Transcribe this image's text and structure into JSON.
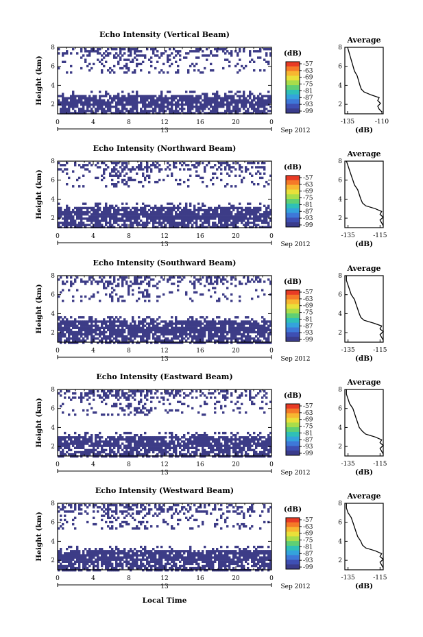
{
  "figure": {
    "xlabel": "Local Time"
  },
  "colorbar": {
    "unit": "(dB)",
    "ticks": [
      "-57",
      "-63",
      "-69",
      "-75",
      "-81",
      "-87",
      "-93",
      "-99"
    ],
    "colors": [
      "#e83b25",
      "#f57a28",
      "#f7b731",
      "#e9e03a",
      "#a9dd4a",
      "#5fcf74",
      "#2fc0b7",
      "#34a3dc",
      "#3e78d8",
      "#3e4fb3",
      "#3a3c8c"
    ]
  },
  "chart_data": [
    {
      "type": "heatmap",
      "title": "Echo Intensity (Vertical Beam)",
      "ylabel": "Height (km)",
      "xticks": [
        "0",
        "4",
        "8",
        "12",
        "16",
        "20",
        "0"
      ],
      "date_tick": "13",
      "date_label": "Sep 2012",
      "yticks": [
        "2",
        "4",
        "6",
        "8"
      ],
      "xlim": [
        0,
        24
      ],
      "ylim": [
        1,
        8
      ],
      "low_layer_top_km": 3.0,
      "average": {
        "title": "Average",
        "xlabel": "(dB)",
        "xticks": [
          "-135",
          "-110"
        ],
        "xlim": [
          -137,
          -109
        ],
        "yticks": [
          "2",
          "4",
          "6",
          "8"
        ],
        "ylim": [
          1,
          8
        ],
        "height_km": [
          1.2,
          1.5,
          1.8,
          2.1,
          2.4,
          2.7,
          3.0,
          3.3,
          3.6,
          4.0,
          4.5,
          5.0,
          5.5,
          6.0,
          6.5,
          7.0,
          7.5,
          8.0
        ],
        "db": [
          -110,
          -112,
          -113,
          -111,
          -113,
          -112,
          -118,
          -123,
          -125,
          -126,
          -127,
          -128,
          -130,
          -131,
          -132,
          -133,
          -134,
          -135
        ]
      }
    },
    {
      "type": "heatmap",
      "title": "Echo Intensity (Northward Beam)",
      "ylabel": "Height (km)",
      "xticks": [
        "0",
        "4",
        "8",
        "12",
        "16",
        "20",
        "0"
      ],
      "date_tick": "13",
      "date_label": "Sep 2012",
      "yticks": [
        "2",
        "4",
        "6",
        "8"
      ],
      "xlim": [
        0,
        24
      ],
      "ylim": [
        1,
        8
      ],
      "low_layer_top_km": 3.2,
      "average": {
        "title": "Average",
        "xlabel": "(dB)",
        "xticks": [
          "-135",
          "-115"
        ],
        "xlim": [
          -137,
          -113
        ],
        "yticks": [
          "2",
          "4",
          "6",
          "8"
        ],
        "ylim": [
          1,
          8
        ],
        "height_km": [
          1.2,
          1.5,
          1.8,
          2.1,
          2.4,
          2.7,
          3.0,
          3.3,
          3.6,
          4.0,
          4.5,
          5.0,
          5.5,
          6.0,
          6.5,
          7.0,
          7.5,
          8.0
        ],
        "db": [
          -113,
          -114,
          -115,
          -113,
          -115,
          -114,
          -118,
          -124,
          -126,
          -127,
          -128,
          -129,
          -131,
          -132,
          -133,
          -134,
          -135,
          -136
        ]
      }
    },
    {
      "type": "heatmap",
      "title": "Echo Intensity (Southward Beam)",
      "ylabel": "Height (km)",
      "xticks": [
        "0",
        "4",
        "8",
        "12",
        "16",
        "20",
        "0"
      ],
      "date_tick": "13",
      "date_label": "Sep 2012",
      "yticks": [
        "2",
        "4",
        "6",
        "8"
      ],
      "xlim": [
        0,
        24
      ],
      "ylim": [
        1,
        8
      ],
      "low_layer_top_km": 3.3,
      "average": {
        "title": "Average",
        "xlabel": "(dB)",
        "xticks": [
          "-135",
          "-115"
        ],
        "xlim": [
          -137,
          -113
        ],
        "yticks": [
          "2",
          "4",
          "6",
          "8"
        ],
        "ylim": [
          1,
          8
        ],
        "height_km": [
          1.2,
          1.5,
          1.8,
          2.1,
          2.4,
          2.7,
          3.0,
          3.3,
          3.6,
          4.0,
          4.5,
          5.0,
          5.5,
          6.0,
          6.5,
          7.0,
          7.5,
          8.0
        ],
        "db": [
          -113,
          -114,
          -115,
          -113,
          -115,
          -114,
          -119,
          -125,
          -127,
          -128,
          -129,
          -130,
          -131,
          -133,
          -134,
          -135,
          -136,
          -136
        ]
      }
    },
    {
      "type": "heatmap",
      "title": "Echo Intensity (Eastward Beam)",
      "ylabel": "Height (km)",
      "xticks": [
        "0",
        "4",
        "8",
        "12",
        "16",
        "20",
        "0"
      ],
      "date_tick": "13",
      "date_label": "Sep 2012",
      "yticks": [
        "2",
        "4",
        "6",
        "8"
      ],
      "xlim": [
        0,
        24
      ],
      "ylim": [
        1,
        8
      ],
      "low_layer_top_km": 3.1,
      "average": {
        "title": "Average",
        "xlabel": "(dB)",
        "xticks": [
          "-135",
          "-115"
        ],
        "xlim": [
          -137,
          -113
        ],
        "yticks": [
          "2",
          "4",
          "6",
          "8"
        ],
        "ylim": [
          1,
          8
        ],
        "height_km": [
          1.2,
          1.5,
          1.8,
          2.1,
          2.4,
          2.7,
          3.0,
          3.3,
          3.6,
          4.0,
          4.5,
          5.0,
          5.5,
          6.0,
          6.5,
          7.0,
          7.5,
          8.0
        ],
        "db": [
          -113,
          -114,
          -115,
          -113,
          -115,
          -114,
          -118,
          -124,
          -126,
          -128,
          -129,
          -130,
          -131,
          -132,
          -134,
          -135,
          -136,
          -136
        ]
      }
    },
    {
      "type": "heatmap",
      "title": "Echo Intensity (Westward Beam)",
      "ylabel": "Height (km)",
      "xticks": [
        "0",
        "4",
        "8",
        "12",
        "16",
        "20",
        "0"
      ],
      "date_tick": "13",
      "date_label": "Sep 2012",
      "yticks": [
        "2",
        "4",
        "6",
        "8"
      ],
      "xlim": [
        0,
        24
      ],
      "ylim": [
        1,
        8
      ],
      "low_layer_top_km": 3.1,
      "average": {
        "title": "Average",
        "xlabel": "(dB)",
        "xticks": [
          "-135",
          "-115"
        ],
        "xlim": [
          -137,
          -113
        ],
        "yticks": [
          "2",
          "4",
          "6",
          "8"
        ],
        "ylim": [
          1,
          8
        ],
        "height_km": [
          1.2,
          1.5,
          1.8,
          2.1,
          2.4,
          2.7,
          3.0,
          3.3,
          3.6,
          4.0,
          4.5,
          5.0,
          5.5,
          6.0,
          6.5,
          7.0,
          7.5,
          8.0
        ],
        "db": [
          -113,
          -114,
          -115,
          -113,
          -115,
          -114,
          -118,
          -124,
          -126,
          -127,
          -129,
          -130,
          -131,
          -132,
          -133,
          -135,
          -136,
          -136
        ]
      }
    }
  ]
}
